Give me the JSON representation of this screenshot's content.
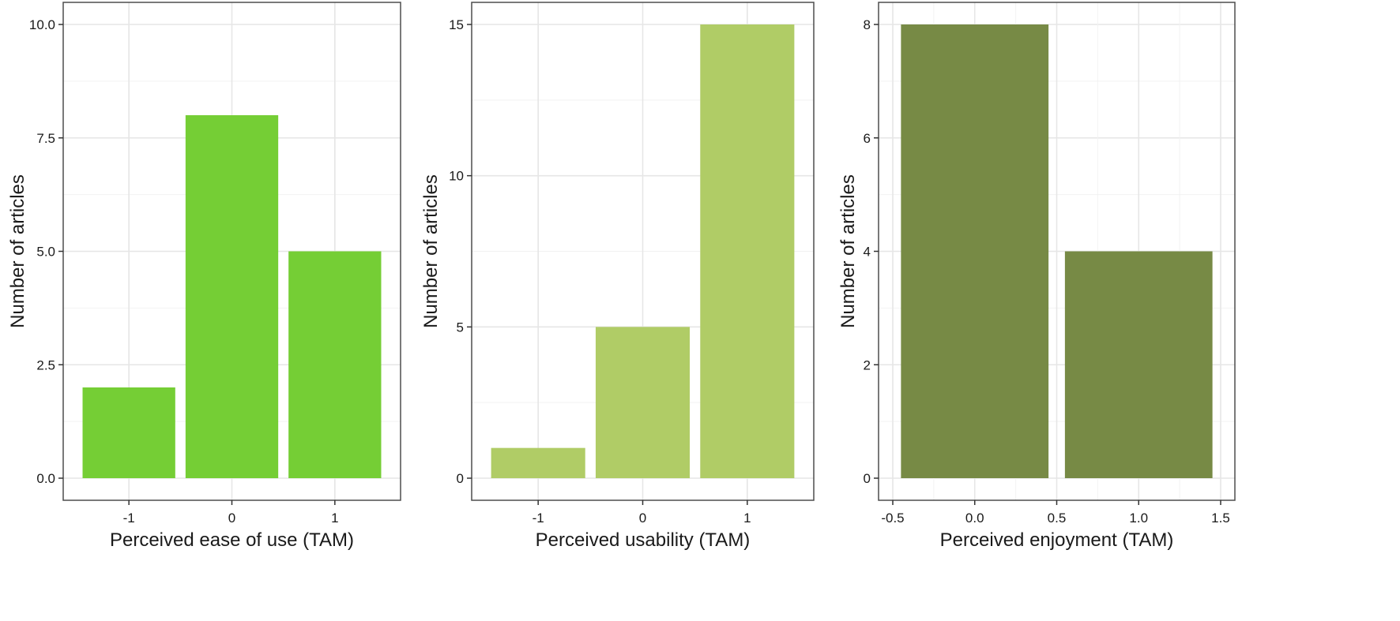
{
  "chart_data": [
    {
      "type": "bar",
      "categories": [
        "-1",
        "0",
        "1"
      ],
      "x": [
        -1,
        0,
        1
      ],
      "values": [
        2,
        8,
        5
      ],
      "xlabel": "Perceived ease of use (TAM)",
      "ylabel": "Number of articles",
      "xlim": [
        -1.5,
        1.5
      ],
      "ylim": [
        0,
        10
      ],
      "xticks": [
        "-1",
        "0",
        "1"
      ],
      "yticks": [
        "0.0",
        "2.5",
        "5.0",
        "7.5",
        "10.0"
      ],
      "ytick_values": [
        0,
        2.5,
        5,
        7.5,
        10
      ],
      "bar_color": "#75CE35",
      "grid": true
    },
    {
      "type": "bar",
      "categories": [
        "-1",
        "0",
        "1"
      ],
      "x": [
        -1,
        0,
        1
      ],
      "values": [
        1,
        5,
        15
      ],
      "xlabel": "Perceived usability (TAM)",
      "ylabel": "Number of articles",
      "xlim": [
        -1.5,
        1.5
      ],
      "ylim": [
        0,
        15
      ],
      "xticks": [
        "-1",
        "0",
        "1"
      ],
      "yticks": [
        "0",
        "5",
        "10",
        "15"
      ],
      "ytick_values": [
        0,
        5,
        10,
        15
      ],
      "bar_color": "#B0CC66",
      "grid": true
    },
    {
      "type": "bar",
      "categories": [
        "0",
        "1"
      ],
      "x": [
        0,
        1
      ],
      "values": [
        8,
        4
      ],
      "xlabel": "Perceived enjoyment (TAM)",
      "ylabel": "Number of articles",
      "xlim": [
        -0.5,
        1.5
      ],
      "ylim": [
        0,
        8
      ],
      "xticks": [
        "-0.5",
        "0.0",
        "0.5",
        "1.0",
        "1.5"
      ],
      "xtick_values": [
        -0.5,
        0,
        0.5,
        1,
        1.5
      ],
      "yticks": [
        "0",
        "2",
        "4",
        "6",
        "8"
      ],
      "ytick_values": [
        0,
        2,
        4,
        6,
        8
      ],
      "bar_color": "#778A45",
      "grid": true
    }
  ]
}
